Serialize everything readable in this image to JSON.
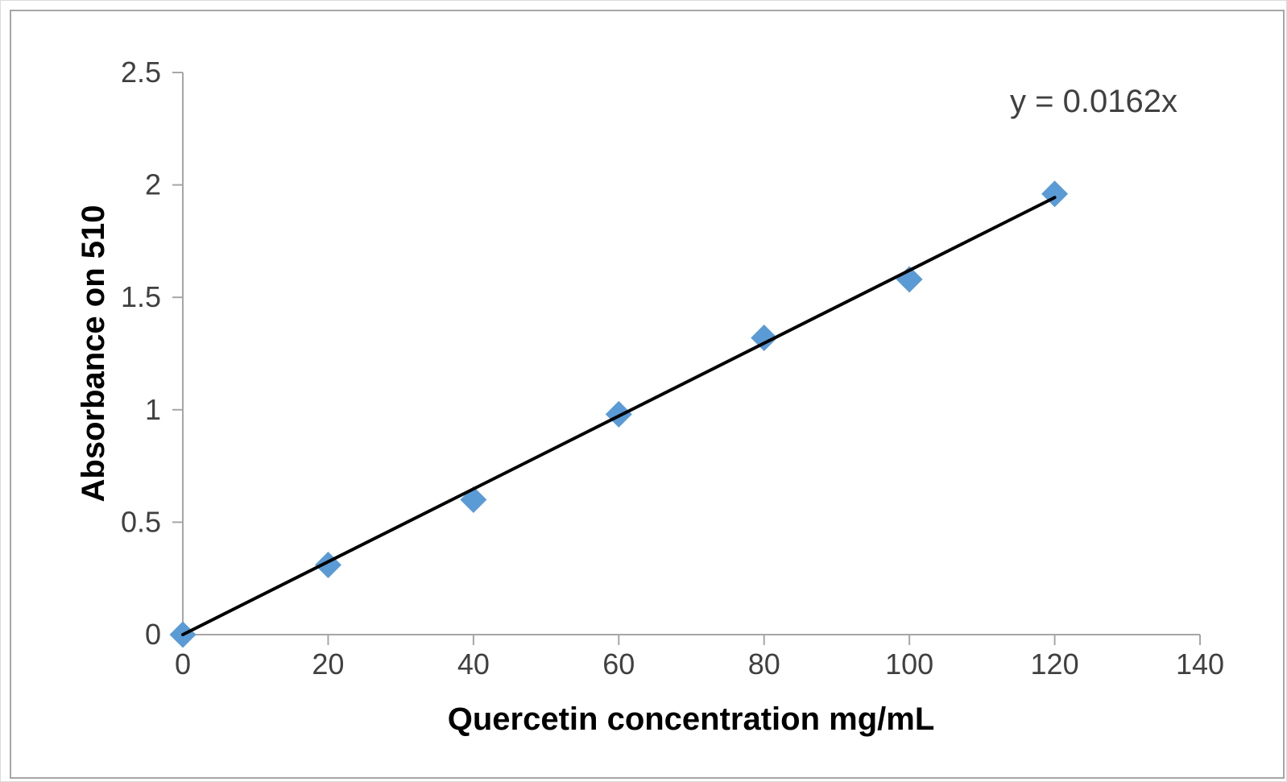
{
  "chart_data": {
    "type": "scatter",
    "title": "",
    "xlabel": "Quercetin concentration mg/mL",
    "ylabel": "Absorbance on 510",
    "x": [
      0,
      20,
      40,
      60,
      80,
      100,
      120
    ],
    "y": [
      0,
      0.31,
      0.6,
      0.98,
      1.32,
      1.58,
      1.96
    ],
    "xticks": [
      "0",
      "20",
      "40",
      "60",
      "80",
      "100",
      "120",
      "140"
    ],
    "yticks": [
      "0",
      "0.5",
      "1",
      "1.5",
      "2",
      "2.5"
    ],
    "xlim": [
      0,
      140
    ],
    "ylim": [
      0,
      2.5
    ],
    "grid": false,
    "legend": "none",
    "marker": "diamond",
    "trendline": {
      "label": "y = 0.0162x",
      "slope": 0.0162,
      "intercept": 0,
      "x_start": 0,
      "x_end": 120
    },
    "colors": {
      "marker": "#5B9BD5",
      "trendline": "#000000",
      "axis": "#A6A6A6",
      "tick_text": "#404040",
      "title_text": "#000000",
      "background": "#FFFFFF",
      "border": "#A6A6A6"
    }
  }
}
